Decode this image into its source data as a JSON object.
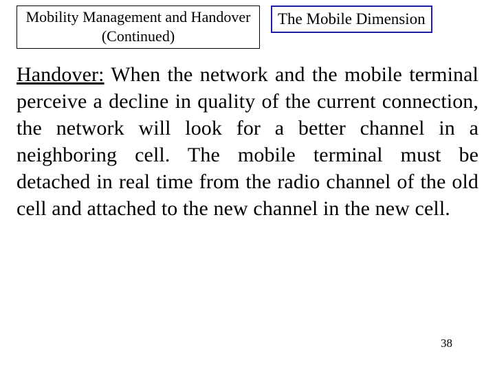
{
  "header": {
    "title_line1": "Mobility Management and Handover",
    "title_line2": "(Continued)",
    "dimension_label": "The Mobile Dimension"
  },
  "body": {
    "term": "Handover:",
    "paragraph": " When the network and the mobile terminal perceive a decline in quality of the current connection, the network will look for a better channel in a neighboring cell. The mobile terminal must be detached in real time from the radio channel of the old cell and attached to the new channel in the new cell."
  },
  "page_number": "38",
  "colors": {
    "text": "#000000",
    "background": "#ffffff",
    "dimension_border": "#1f1fa3"
  }
}
